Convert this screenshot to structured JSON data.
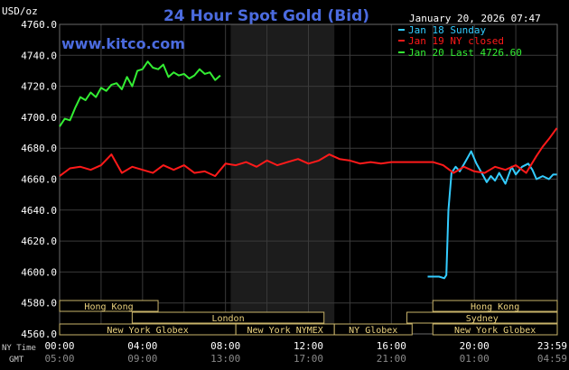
{
  "header": {
    "title": "24 Hour Spot Gold (Bid)",
    "unit_label": "USD/oz",
    "website": "www.kitco.com",
    "datetime": "January 20, 2026 07:47"
  },
  "legend": [
    {
      "label": "Jan 18 Sunday",
      "color": "#33ccff"
    },
    {
      "label": "Jan 19 NY closed",
      "color": "#ff1a1a"
    },
    {
      "label": "Jan 20 Last 4726.60",
      "color": "#33ee33"
    }
  ],
  "sessions": [
    {
      "label": "Hong Kong",
      "start": 0,
      "end": 4.75
    },
    {
      "label": "London",
      "start": 3.5,
      "end": 12.75
    },
    {
      "label": "New York Globex",
      "start": 0,
      "end": 8.5
    },
    {
      "label": "New York NYMEX",
      "start": 8.5,
      "end": 13.25
    },
    {
      "label": "NY Globex",
      "start": 13.25,
      "end": 17.0
    },
    {
      "label": "Hong Kong",
      "start": 18.0,
      "end": 24
    },
    {
      "label": "Sydney",
      "start": 16.75,
      "end": 24
    },
    {
      "label": "New York Globex",
      "start": 18.0,
      "end": 24
    }
  ],
  "time_rows": {
    "ny_label": "NY Time",
    "gmt_label": "GMT",
    "ny_ticks": [
      "00:00",
      "04:00",
      "08:00",
      "12:00",
      "16:00",
      "20:00",
      "23:59"
    ],
    "gmt_ticks": [
      "05:00",
      "09:00",
      "13:00",
      "17:00",
      "21:00",
      "01:00",
      "04:59"
    ]
  },
  "chart_data": {
    "type": "line",
    "title": "24 Hour Spot Gold (Bid)",
    "ylabel": "USD/oz",
    "xlim": [
      0,
      24
    ],
    "ylim": [
      4560,
      4760
    ],
    "yticks": [
      "4760.0",
      "4740.0",
      "4720.0",
      "4700.0",
      "4680.0",
      "4660.0",
      "4640.0",
      "4620.0",
      "4600.0",
      "4580.0",
      "4560.0"
    ],
    "ytick_values": [
      4760,
      4740,
      4720,
      4700,
      4680,
      4660,
      4640,
      4620,
      4600,
      4580,
      4560
    ],
    "grid": true,
    "legend_position": "top-right",
    "shaded_region": [
      8.25,
      13.25
    ],
    "series": [
      {
        "name": "Jan 18 Sunday",
        "color": "#33ccff",
        "x": [
          17.75,
          18.3,
          18.55,
          18.65,
          18.75,
          18.9,
          19.1,
          19.3,
          19.6,
          19.85,
          20.1,
          20.4,
          20.6,
          20.8,
          21.0,
          21.2,
          21.5,
          21.8,
          22.0,
          22.3,
          22.6,
          22.8,
          23.0,
          23.3,
          23.6,
          23.8,
          23.98
        ],
        "y": [
          4597,
          4597,
          4596,
          4598,
          4640,
          4664,
          4668,
          4665,
          4672,
          4678,
          4670,
          4663,
          4658,
          4662,
          4659,
          4664,
          4657,
          4668,
          4663,
          4668,
          4670,
          4666,
          4660,
          4662,
          4660,
          4663,
          4663
        ]
      },
      {
        "name": "Jan 19 NY closed",
        "color": "#ff1a1a",
        "x": [
          0,
          0.5,
          1.0,
          1.5,
          2.0,
          2.5,
          3.0,
          3.5,
          4.0,
          4.5,
          5.0,
          5.5,
          6.0,
          6.5,
          7.0,
          7.5,
          8.0,
          8.5,
          9.0,
          9.5,
          10.0,
          10.5,
          11.0,
          11.5,
          12.0,
          12.5,
          13.0,
          13.5,
          14.0,
          14.5,
          15.0,
          15.5,
          16.0,
          16.5,
          17.0,
          17.5,
          18.0,
          18.5,
          19.0,
          19.5,
          20.0,
          20.5,
          21.0,
          21.5,
          22.0,
          22.5,
          23.0,
          23.3,
          23.6,
          23.98
        ],
        "y": [
          4662,
          4667,
          4668,
          4666,
          4669,
          4676,
          4664,
          4668,
          4666,
          4664,
          4669,
          4666,
          4669,
          4664,
          4665,
          4662,
          4670,
          4669,
          4671,
          4668,
          4672,
          4669,
          4671,
          4673,
          4670,
          4672,
          4676,
          4673,
          4672,
          4670,
          4671,
          4670,
          4671,
          4671,
          4671,
          4671,
          4671,
          4669,
          4664,
          4668,
          4665,
          4664,
          4668,
          4666,
          4669,
          4664,
          4675,
          4681,
          4686,
          4693
        ]
      },
      {
        "name": "Jan 20 Last 4726.60",
        "color": "#33ee33",
        "x": [
          0,
          0.25,
          0.5,
          0.75,
          1.0,
          1.25,
          1.5,
          1.75,
          2.0,
          2.25,
          2.5,
          2.75,
          3.0,
          3.25,
          3.5,
          3.75,
          4.0,
          4.25,
          4.5,
          4.75,
          5.0,
          5.25,
          5.5,
          5.75,
          6.0,
          6.25,
          6.5,
          6.75,
          7.0,
          7.25,
          7.5,
          7.75
        ],
        "y": [
          4694,
          4699,
          4698,
          4706,
          4713,
          4711,
          4716,
          4713,
          4719,
          4717,
          4721,
          4722,
          4718,
          4726,
          4720,
          4730,
          4731,
          4736,
          4732,
          4731,
          4734,
          4726,
          4729,
          4727,
          4728,
          4725,
          4727,
          4731,
          4728,
          4729,
          4724,
          4727
        ]
      }
    ]
  }
}
